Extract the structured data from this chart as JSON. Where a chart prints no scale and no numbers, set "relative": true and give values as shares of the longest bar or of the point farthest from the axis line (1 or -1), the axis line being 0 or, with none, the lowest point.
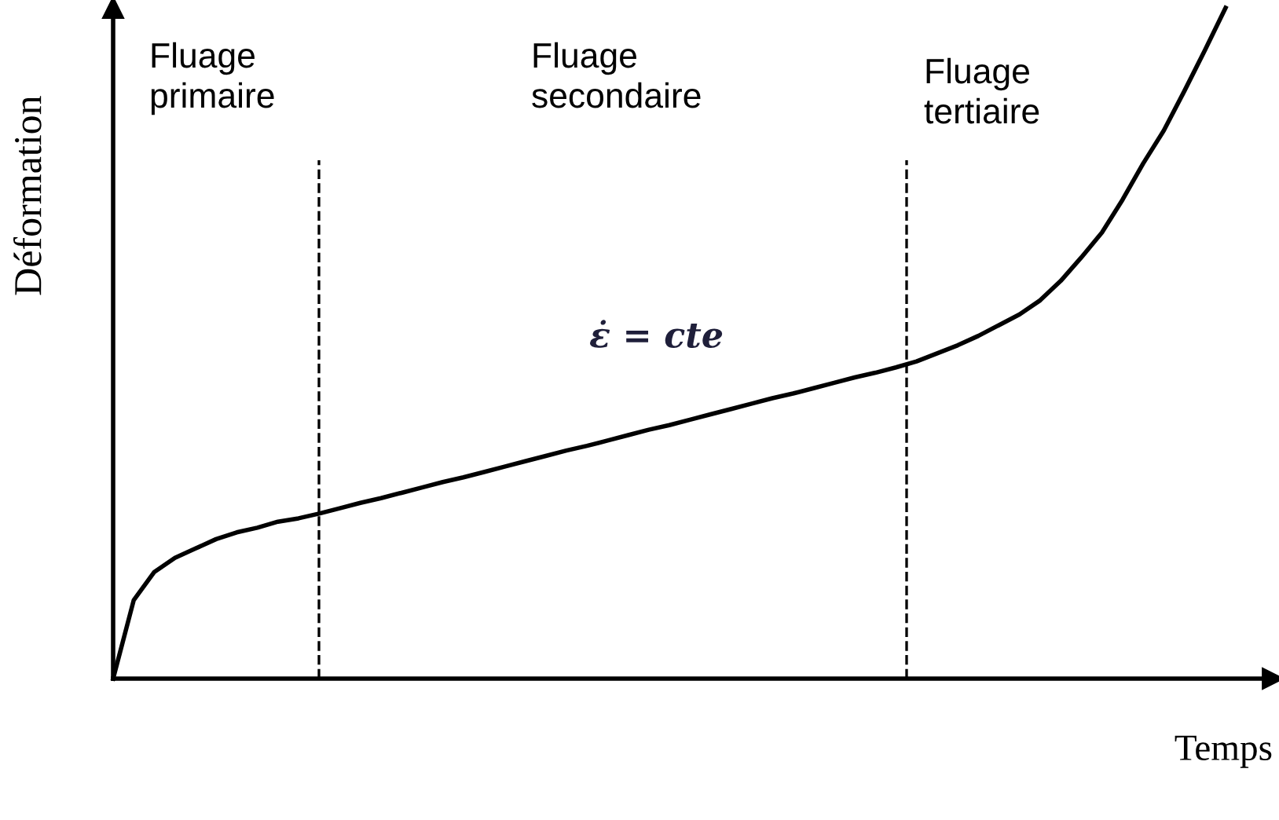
{
  "chart_data": {
    "type": "line",
    "relative": true,
    "xlabel": "Temps",
    "ylabel": "Déformation",
    "color": "#000000",
    "categories": [
      null,
      null,
      null,
      null,
      null,
      null,
      null,
      null,
      null,
      null,
      null,
      null,
      null,
      null,
      null,
      null,
      null,
      null,
      null,
      null,
      null,
      null,
      null,
      null,
      null,
      null,
      null,
      null,
      null,
      null,
      null,
      null,
      null,
      null,
      null,
      null,
      null,
      null,
      null,
      null,
      null,
      null,
      null,
      null,
      null,
      null,
      null,
      null,
      null,
      null,
      null,
      null,
      null,
      null,
      null
    ],
    "values": [
      0,
      0.117,
      0.159,
      0.18,
      0.194,
      0.208,
      0.218,
      0.225,
      0.234,
      0.239,
      0.246,
      0.254,
      0.262,
      0.269,
      0.277,
      0.285,
      0.293,
      0.3,
      0.308,
      0.316,
      0.324,
      0.332,
      0.34,
      0.347,
      0.355,
      0.363,
      0.371,
      0.378,
      0.386,
      0.394,
      0.402,
      0.41,
      0.418,
      0.425,
      0.433,
      0.441,
      0.449,
      0.456,
      0.464,
      0.473,
      0.485,
      0.497,
      0.511,
      0.527,
      0.543,
      0.564,
      0.593,
      0.628,
      0.665,
      0.714,
      0.768,
      0.817,
      0.876,
      0.937,
      1
    ],
    "annotations": [
      "Fluage\nprimaire",
      "Fluage\nsecondaire",
      "Fluage\ntertiaire",
      "ε̇ = cte"
    ],
    "grid": false,
    "legend": false,
    "marker": "none",
    "line_style": "solid"
  }
}
